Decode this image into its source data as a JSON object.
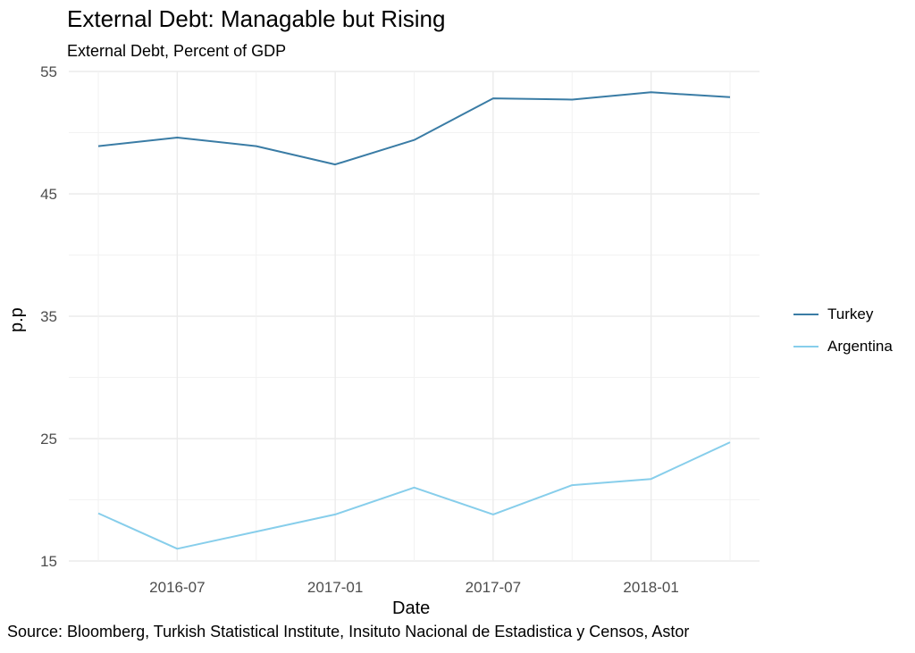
{
  "chart_data": {
    "type": "line",
    "title": "External Debt: Managable but Rising",
    "subtitle": "External Debt, Percent of GDP",
    "xlabel": "Date",
    "ylabel": "p.p",
    "caption": "Source: Bloomberg, Turkish Statistical Institute, Insituto Nacional de Estadistica y Censos, Astor",
    "x": [
      "2016-04",
      "2016-07",
      "2016-10",
      "2017-01",
      "2017-04",
      "2017-07",
      "2017-10",
      "2018-01",
      "2018-04"
    ],
    "x_tick_labels": [
      "2016-07",
      "2017-01",
      "2017-07",
      "2018-01"
    ],
    "y_tick_labels": [
      "15",
      "25",
      "35",
      "45",
      "55"
    ],
    "ylim": [
      15,
      55
    ],
    "grid": true,
    "legend_position": "right",
    "series": [
      {
        "name": "Turkey",
        "color": "#3a7ca5",
        "values": [
          48.9,
          49.6,
          48.9,
          47.4,
          49.4,
          52.8,
          52.7,
          53.3,
          52.9
        ]
      },
      {
        "name": "Argentina",
        "color": "#87ceeb",
        "values": [
          18.9,
          16.0,
          17.4,
          18.8,
          21.0,
          18.8,
          21.2,
          21.7,
          24.7
        ]
      }
    ]
  }
}
